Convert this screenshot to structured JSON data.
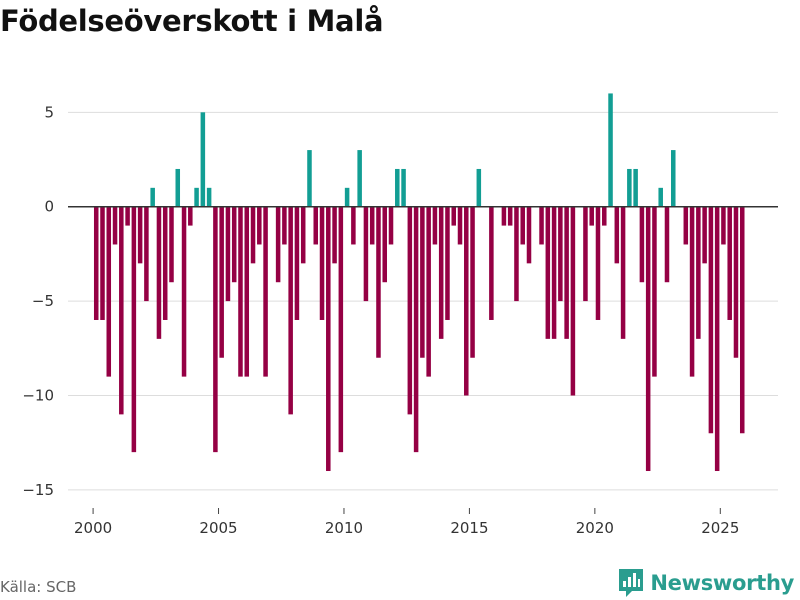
{
  "chart_data": {
    "type": "bar",
    "title": "Födelseöverskott i Malå",
    "xlabel": "",
    "ylabel": "",
    "xlim": [
      1999.0,
      2027.3
    ],
    "ylim": [
      -15.8,
      6.5
    ],
    "y_ticks": [
      5,
      0,
      -5,
      -10,
      -15
    ],
    "y_tick_labels": [
      "5",
      "0",
      "−5",
      "−10",
      "−15"
    ],
    "x_ticks": [
      2000,
      2005,
      2010,
      2015,
      2020,
      2025
    ],
    "x_tick_labels": [
      "2000",
      "2005",
      "2010",
      "2015",
      "2020",
      "2025"
    ],
    "grid": true,
    "positive_color": "#129e94",
    "negative_color": "#950044",
    "start_year": 2000,
    "periods_per_year": 4,
    "series": [
      {
        "name": "Födelseöverskott",
        "values": [
          -6,
          -6,
          -9,
          -2,
          -11,
          -1,
          -13,
          -3,
          -5,
          1,
          -7,
          -6,
          -4,
          2,
          -9,
          -1,
          1,
          5,
          1,
          -13,
          -8,
          -5,
          -4,
          -9,
          -9,
          -3,
          -2,
          -9,
          0,
          -4,
          -2,
          -11,
          -6,
          -3,
          3,
          -2,
          -6,
          -14,
          -3,
          -13,
          1,
          -2,
          3,
          -5,
          -2,
          -8,
          -4,
          -2,
          2,
          2,
          -11,
          -13,
          -8,
          -9,
          -2,
          -7,
          -6,
          -1,
          -2,
          -10,
          -8,
          2,
          0,
          -6,
          0,
          -1,
          -1,
          -5,
          -2,
          -3,
          0,
          -2,
          -7,
          -7,
          -5,
          -7,
          -10,
          0,
          -5,
          -1,
          -6,
          -1,
          6,
          -3,
          -7,
          2,
          2,
          -4,
          -14,
          -9,
          1,
          -4,
          3,
          0,
          -2,
          -9,
          -7,
          -3,
          -12,
          -14,
          -2,
          -6,
          -8,
          -12
        ]
      }
    ]
  },
  "source": "Källa: SCB",
  "brand": "Newsworthy",
  "colors": {
    "grid": "#dddddd",
    "zero_line": "#333333",
    "brand": "#2a9d8f"
  }
}
